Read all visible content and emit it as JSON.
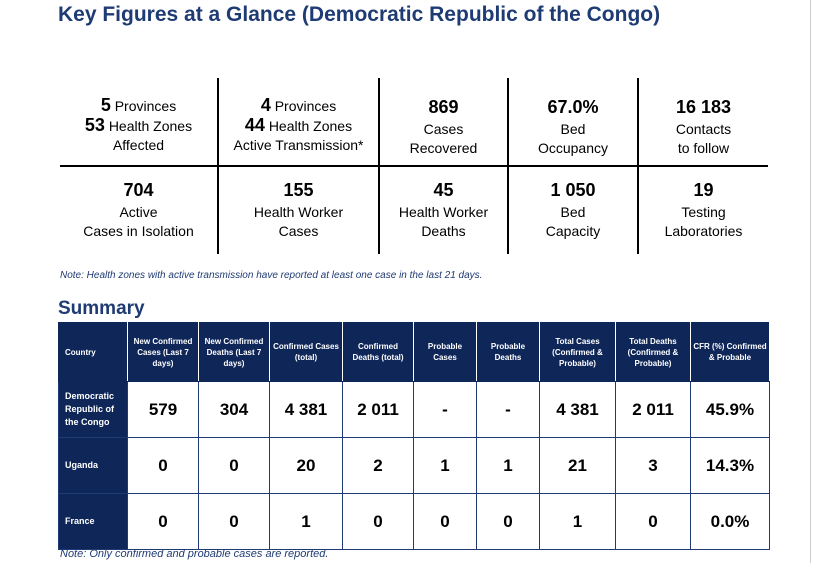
{
  "title": "Key Figures at a Glance (Democratic Republic of the Congo)",
  "key_figures": {
    "row1": [
      {
        "num1": "5",
        "txt1": "Provinces",
        "num2": "53",
        "txt2": "Health Zones",
        "txt3": "Affected"
      },
      {
        "num1": "4",
        "txt1": "Provinces",
        "num2": "44",
        "txt2": "Health Zones",
        "txt3": "Active Transmission*"
      },
      {
        "value": "869",
        "label1": "Cases",
        "label2": "Recovered"
      },
      {
        "value": "67.0%",
        "label1": "Bed",
        "label2": "Occupancy"
      },
      {
        "value": "16 183",
        "label1": "Contacts",
        "label2": "to follow"
      }
    ],
    "row2": [
      {
        "value": "704",
        "label1": "Active",
        "label2": "Cases in Isolation"
      },
      {
        "value": "155",
        "label1": "Health Worker",
        "label2": "Cases"
      },
      {
        "value": "45",
        "label1": "Health Worker",
        "label2": "Deaths"
      },
      {
        "value": "1 050",
        "label1": "Bed",
        "label2": "Capacity"
      },
      {
        "value": "19",
        "label1": "Testing",
        "label2": "Laboratories"
      }
    ]
  },
  "note_transmission": "Note: Health zones with active transmission have reported at least one case in the last 21 days.",
  "summary": {
    "title": "Summary",
    "headers": [
      "Country",
      "New Confirmed Cases (Last 7 days)",
      "New Confirmed Deaths (Last 7 days)",
      "Confirmed Cases (total)",
      "Confirmed Deaths (total)",
      "Probable Cases",
      "Probable Deaths",
      "Total Cases (Confirmed & Probable)",
      "Total Deaths (Confirmed & Probable)",
      "CFR (%) Confirmed & Probable"
    ],
    "rows": [
      [
        "Democratic Republic of the Congo",
        "579",
        "304",
        "4 381",
        "2 011",
        "-",
        "-",
        "4 381",
        "2 011",
        "45.9%"
      ],
      [
        "Uganda",
        "0",
        "0",
        "20",
        "2",
        "1",
        "1",
        "21",
        "3",
        "14.3%"
      ],
      [
        "France",
        "0",
        "0",
        "1",
        "0",
        "0",
        "0",
        "1",
        "0",
        "0.0%"
      ]
    ]
  },
  "note_cases": "Note: Only confirmed and probable cases are reported."
}
